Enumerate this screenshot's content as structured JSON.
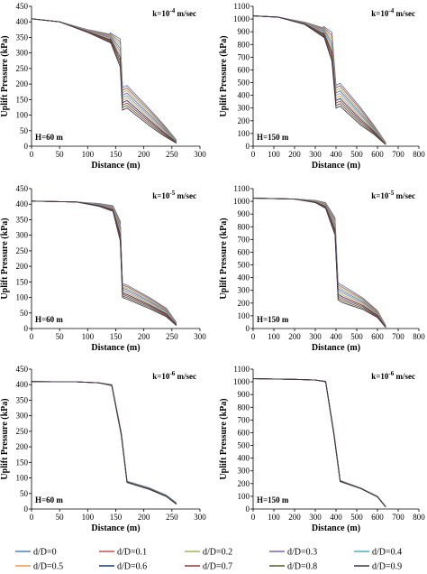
{
  "legend": {
    "entries": [
      "d/D=0",
      "d/D=0.1",
      "d/D=0.2",
      "d/D=0.3",
      "d/D=0.4",
      "d/D=0.5",
      "d/D=0.6",
      "d/D=0.7",
      "d/D=0.8",
      "d/D=0.9"
    ],
    "colors": [
      "#4f81bd",
      "#c0504d",
      "#9bbb59",
      "#8064a2",
      "#4bacc6",
      "#f79646",
      "#1f3b6b",
      "#943634",
      "#4f6228",
      "#3f3151"
    ]
  },
  "chart_data": [
    {
      "type": "line",
      "k_label": "k=10",
      "k_exp": "-4",
      "k_unit": " m/sec",
      "h_label": "H=60 m",
      "xlabel": "Distance (m)",
      "ylabel": "Uplift Pressure (kPa)",
      "xlim": [
        0,
        300
      ],
      "ylim": [
        0,
        450
      ],
      "xticks": [
        0,
        50,
        100,
        150,
        200,
        250,
        300
      ],
      "yticks": [
        0,
        50,
        100,
        150,
        200,
        250,
        300,
        350,
        400,
        450
      ],
      "x": [
        0,
        50,
        100,
        140,
        140,
        158,
        162,
        170,
        210,
        235,
        258
      ],
      "series": [
        {
          "y": [
            410,
            400,
            375,
            360,
            365,
            345,
            188,
            195,
            120,
            70,
            20
          ]
        },
        {
          "y": [
            410,
            400,
            374,
            357,
            362,
            335,
            180,
            187,
            114,
            66,
            18
          ]
        },
        {
          "y": [
            410,
            400,
            373,
            354,
            359,
            325,
            172,
            179,
            108,
            62,
            17
          ]
        },
        {
          "y": [
            410,
            400,
            372,
            351,
            356,
            315,
            164,
            171,
            102,
            58,
            16
          ]
        },
        {
          "y": [
            410,
            400,
            371,
            348,
            353,
            305,
            156,
            163,
            96,
            54,
            15
          ]
        },
        {
          "y": [
            410,
            400,
            370,
            345,
            350,
            295,
            148,
            155,
            90,
            50,
            14
          ]
        },
        {
          "y": [
            410,
            400,
            369,
            342,
            347,
            285,
            140,
            147,
            84,
            46,
            13
          ]
        },
        {
          "y": [
            410,
            400,
            368,
            339,
            344,
            275,
            132,
            139,
            78,
            42,
            12
          ]
        },
        {
          "y": [
            410,
            400,
            367,
            336,
            341,
            265,
            124,
            131,
            72,
            38,
            11
          ]
        },
        {
          "y": [
            410,
            400,
            366,
            333,
            338,
            255,
            116,
            123,
            66,
            34,
            10
          ]
        }
      ]
    },
    {
      "type": "line",
      "k_label": "k=10",
      "k_exp": "-4",
      "k_unit": " m/sec",
      "h_label": "H=150 m",
      "xlabel": "Distance (m)",
      "ylabel": "Uplift Pressure (kPa)",
      "xlim": [
        0,
        800
      ],
      "ylim": [
        0,
        1100
      ],
      "xticks": [
        0,
        100,
        200,
        300,
        400,
        500,
        600,
        700,
        800
      ],
      "yticks": [
        0,
        100,
        200,
        300,
        400,
        500,
        600,
        700,
        800,
        900,
        1000,
        1100
      ],
      "x": [
        0,
        120,
        250,
        340,
        340,
        380,
        400,
        420,
        520,
        580,
        640
      ],
      "series": [
        {
          "y": [
            1025,
            1015,
            975,
            930,
            942,
            895,
            480,
            495,
            300,
            170,
            30
          ]
        },
        {
          "y": [
            1025,
            1015,
            973,
            922,
            934,
            870,
            460,
            475,
            285,
            162,
            28
          ]
        },
        {
          "y": [
            1025,
            1015,
            971,
            914,
            926,
            845,
            440,
            455,
            270,
            154,
            26
          ]
        },
        {
          "y": [
            1025,
            1015,
            969,
            906,
            918,
            820,
            420,
            435,
            255,
            146,
            24
          ]
        },
        {
          "y": [
            1025,
            1015,
            967,
            898,
            910,
            795,
            400,
            415,
            240,
            138,
            22
          ]
        },
        {
          "y": [
            1025,
            1015,
            965,
            890,
            902,
            770,
            380,
            395,
            225,
            130,
            20
          ]
        },
        {
          "y": [
            1025,
            1015,
            963,
            882,
            894,
            745,
            360,
            375,
            210,
            122,
            18
          ]
        },
        {
          "y": [
            1025,
            1015,
            961,
            874,
            886,
            720,
            340,
            355,
            195,
            114,
            16
          ]
        },
        {
          "y": [
            1025,
            1015,
            959,
            866,
            878,
            695,
            320,
            335,
            180,
            106,
            14
          ]
        },
        {
          "y": [
            1025,
            1015,
            957,
            858,
            870,
            670,
            300,
            315,
            165,
            98,
            12
          ]
        }
      ]
    },
    {
      "type": "line",
      "k_label": "k=10",
      "k_exp": "-5",
      "k_unit": " m/sec",
      "h_label": "H=60 m",
      "xlabel": "Distance (m)",
      "ylabel": "Uplift Pressure (kPa)",
      "xlim": [
        0,
        300
      ],
      "ylim": [
        0,
        450
      ],
      "xticks": [
        0,
        50,
        100,
        150,
        200,
        250,
        300
      ],
      "yticks": [
        0,
        50,
        100,
        150,
        200,
        250,
        300,
        350,
        400,
        450
      ],
      "x": [
        0,
        80,
        120,
        145,
        158,
        162,
        172,
        210,
        240,
        258
      ],
      "series": [
        {
          "y": [
            410,
            407,
            402,
            395,
            345,
            145,
            138,
            100,
            65,
            20
          ]
        },
        {
          "y": [
            410,
            407,
            401,
            393,
            338,
            140,
            133,
            96,
            62,
            18
          ]
        },
        {
          "y": [
            410,
            407,
            400,
            391,
            331,
            135,
            128,
            92,
            59,
            17
          ]
        },
        {
          "y": [
            410,
            407,
            399,
            389,
            324,
            130,
            123,
            88,
            56,
            16
          ]
        },
        {
          "y": [
            410,
            407,
            398,
            387,
            317,
            125,
            118,
            84,
            53,
            15
          ]
        },
        {
          "y": [
            410,
            407,
            397,
            385,
            310,
            120,
            113,
            80,
            50,
            14
          ]
        },
        {
          "y": [
            410,
            407,
            396,
            383,
            303,
            115,
            108,
            76,
            47,
            13
          ]
        },
        {
          "y": [
            410,
            407,
            395,
            381,
            296,
            110,
            103,
            72,
            44,
            12
          ]
        },
        {
          "y": [
            410,
            407,
            394,
            379,
            289,
            105,
            98,
            68,
            41,
            11
          ]
        },
        {
          "y": [
            410,
            407,
            393,
            377,
            282,
            100,
            93,
            64,
            38,
            10
          ]
        }
      ]
    },
    {
      "type": "line",
      "k_label": "k=10",
      "k_exp": "-5",
      "k_unit": " m/sec",
      "h_label": "H=150 m",
      "xlabel": "Distance (m)",
      "ylabel": "Uplift Pressure (kPa)",
      "xlim": [
        0,
        800
      ],
      "ylim": [
        0,
        1100
      ],
      "xticks": [
        0,
        100,
        200,
        300,
        400,
        500,
        600,
        700,
        800
      ],
      "yticks": [
        0,
        100,
        200,
        300,
        400,
        500,
        600,
        700,
        800,
        900,
        1000,
        1100
      ],
      "x": [
        0,
        200,
        300,
        350,
        395,
        410,
        430,
        530,
        600,
        640
      ],
      "series": [
        {
          "y": [
            1025,
            1018,
            1008,
            990,
            870,
            360,
            340,
            240,
            140,
            25
          ]
        },
        {
          "y": [
            1025,
            1018,
            1006,
            985,
            855,
            345,
            325,
            230,
            134,
            23
          ]
        },
        {
          "y": [
            1025,
            1018,
            1004,
            980,
            840,
            330,
            310,
            220,
            128,
            21
          ]
        },
        {
          "y": [
            1025,
            1018,
            1002,
            975,
            825,
            315,
            295,
            210,
            122,
            19
          ]
        },
        {
          "y": [
            1025,
            1018,
            1000,
            970,
            810,
            300,
            280,
            200,
            116,
            17
          ]
        },
        {
          "y": [
            1025,
            1018,
            998,
            965,
            795,
            285,
            265,
            190,
            110,
            15
          ]
        },
        {
          "y": [
            1025,
            1018,
            996,
            960,
            780,
            270,
            250,
            180,
            104,
            13
          ]
        },
        {
          "y": [
            1025,
            1018,
            994,
            955,
            765,
            255,
            235,
            170,
            98,
            11
          ]
        },
        {
          "y": [
            1025,
            1018,
            992,
            950,
            750,
            240,
            220,
            160,
            92,
            9
          ]
        },
        {
          "y": [
            1025,
            1018,
            990,
            945,
            735,
            225,
            205,
            150,
            86,
            7
          ]
        }
      ]
    },
    {
      "type": "line",
      "k_label": "k=10",
      "k_exp": "-6",
      "k_unit": " m/sec",
      "h_label": "H=60 m",
      "xlabel": "Distance (m)",
      "ylabel": "Uplift Pressure (kPa)",
      "xlim": [
        0,
        300
      ],
      "ylim": [
        0,
        450
      ],
      "xticks": [
        0,
        50,
        100,
        150,
        200,
        250,
        300
      ],
      "yticks": [
        0,
        50,
        100,
        150,
        200,
        250,
        300,
        350,
        400,
        450
      ],
      "x": [
        0,
        80,
        120,
        143,
        160,
        170,
        210,
        240,
        258
      ],
      "series": [
        {
          "y": [
            410,
            409,
            406,
            400,
            245,
            90,
            68,
            45,
            20
          ]
        },
        {
          "y": [
            410,
            409,
            406,
            400,
            244,
            89,
            67,
            44,
            19
          ]
        },
        {
          "y": [
            410,
            409,
            406,
            400,
            243,
            89,
            67,
            44,
            19
          ]
        },
        {
          "y": [
            410,
            409,
            406,
            399,
            242,
            88,
            66,
            43,
            18
          ]
        },
        {
          "y": [
            410,
            409,
            406,
            399,
            241,
            88,
            66,
            43,
            18
          ]
        },
        {
          "y": [
            410,
            409,
            406,
            399,
            240,
            87,
            65,
            42,
            17
          ]
        },
        {
          "y": [
            410,
            409,
            406,
            398,
            239,
            87,
            65,
            42,
            17
          ]
        },
        {
          "y": [
            410,
            409,
            406,
            398,
            238,
            86,
            64,
            41,
            16
          ]
        },
        {
          "y": [
            410,
            409,
            406,
            398,
            237,
            86,
            64,
            41,
            16
          ]
        },
        {
          "y": [
            410,
            409,
            406,
            397,
            236,
            85,
            63,
            40,
            15
          ]
        }
      ]
    },
    {
      "type": "line",
      "k_label": "k=10",
      "k_exp": "-6",
      "k_unit": " m/sec",
      "h_label": "H=150 m",
      "xlabel": "Distance (m)",
      "ylabel": "Uplift Pressure (kPa)",
      "xlim": [
        0,
        800
      ],
      "ylim": [
        0,
        1100
      ],
      "xticks": [
        0,
        100,
        200,
        300,
        400,
        500,
        600,
        700,
        800
      ],
      "yticks": [
        0,
        100,
        200,
        300,
        400,
        500,
        600,
        700,
        800,
        900,
        1000,
        1100
      ],
      "x": [
        0,
        200,
        300,
        350,
        390,
        420,
        520,
        600,
        640
      ],
      "series": [
        {
          "y": [
            1025,
            1020,
            1014,
            1005,
            600,
            225,
            165,
            100,
            20
          ]
        },
        {
          "y": [
            1025,
            1020,
            1014,
            1004,
            598,
            224,
            164,
            99,
            19
          ]
        },
        {
          "y": [
            1025,
            1020,
            1014,
            1004,
            596,
            223,
            164,
            99,
            19
          ]
        },
        {
          "y": [
            1025,
            1020,
            1014,
            1003,
            594,
            222,
            163,
            98,
            18
          ]
        },
        {
          "y": [
            1025,
            1020,
            1014,
            1003,
            592,
            221,
            163,
            98,
            18
          ]
        },
        {
          "y": [
            1025,
            1020,
            1014,
            1002,
            590,
            220,
            162,
            97,
            17
          ]
        },
        {
          "y": [
            1025,
            1020,
            1014,
            1002,
            588,
            219,
            162,
            97,
            17
          ]
        },
        {
          "y": [
            1025,
            1020,
            1014,
            1001,
            586,
            218,
            161,
            96,
            16
          ]
        },
        {
          "y": [
            1025,
            1020,
            1014,
            1001,
            584,
            217,
            161,
            96,
            16
          ]
        },
        {
          "y": [
            1025,
            1020,
            1014,
            1000,
            582,
            216,
            160,
            95,
            15
          ]
        }
      ]
    }
  ]
}
